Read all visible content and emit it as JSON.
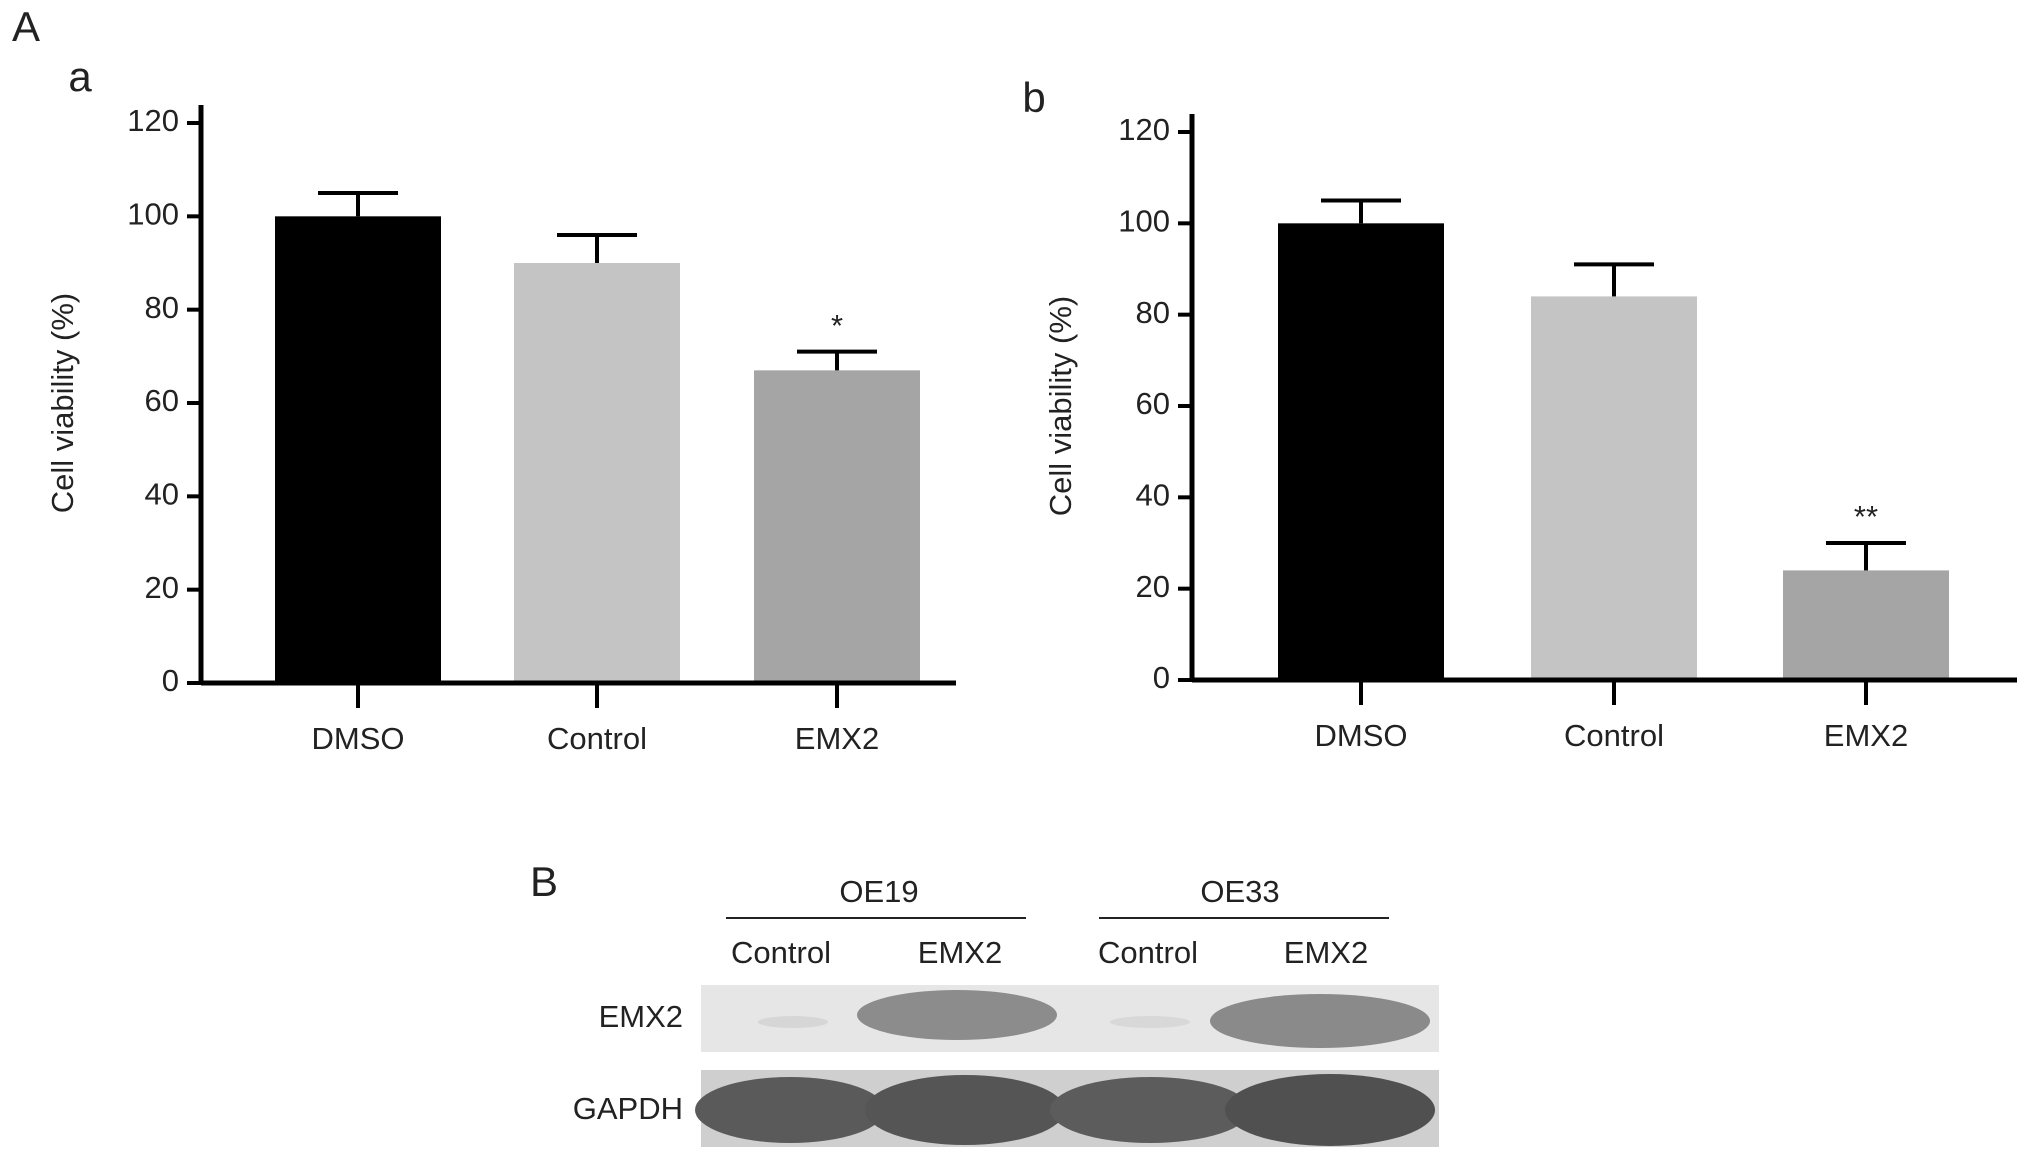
{
  "chart_data": [
    {
      "type": "bar",
      "panel": "a",
      "ylabel": "Cell viability (%)",
      "categories": [
        "DMSO",
        "Control",
        "EMX2"
      ],
      "values": [
        100,
        90,
        67
      ],
      "errors": [
        5,
        6,
        4
      ],
      "annotations": [
        null,
        null,
        "*"
      ],
      "colors": [
        "#000000",
        "#c4c4c4",
        "#a5a5a5"
      ],
      "ylim": [
        0,
        120
      ],
      "yticks": [
        0,
        20,
        40,
        60,
        80,
        100,
        120
      ]
    },
    {
      "type": "bar",
      "panel": "b",
      "ylabel": "Cell viability (%)",
      "categories": [
        "DMSO",
        "Control",
        "EMX2"
      ],
      "values": [
        100,
        84,
        24
      ],
      "errors": [
        5,
        7,
        6
      ],
      "annotations": [
        null,
        null,
        "**"
      ],
      "colors": [
        "#000000",
        "#c4c4c4",
        "#a5a5a5"
      ],
      "ylim": [
        0,
        120
      ],
      "yticks": [
        0,
        20,
        40,
        60,
        80,
        100,
        120
      ]
    }
  ],
  "figure": {
    "panel_a": "A",
    "panel_b": "B"
  },
  "blot": {
    "groups": [
      "OE19",
      "OE33"
    ],
    "lanes": [
      "Control",
      "EMX2",
      "Control",
      "EMX2"
    ],
    "rows": [
      "EMX2",
      "GAPDH"
    ]
  }
}
